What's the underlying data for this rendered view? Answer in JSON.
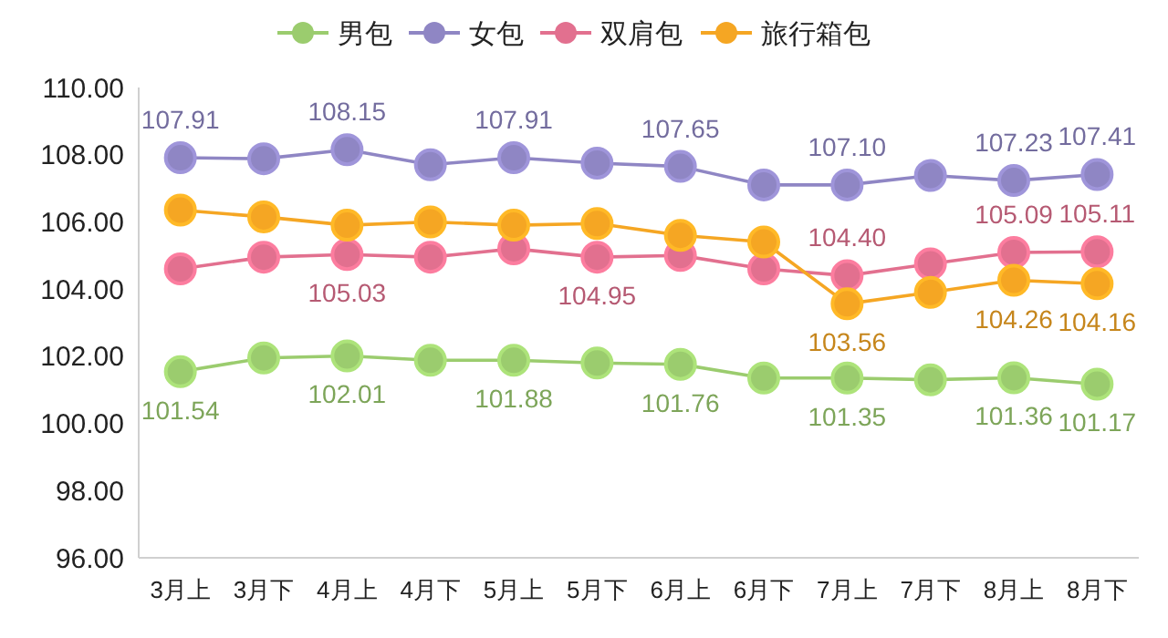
{
  "chart_data": {
    "type": "line",
    "categories": [
      "3月上",
      "3月下",
      "4月上",
      "4月下",
      "5月上",
      "5月下",
      "6月上",
      "6月下",
      "7月上",
      "7月下",
      "8月上",
      "8月下"
    ],
    "ylim": [
      96,
      110
    ],
    "yticks": [
      {
        "value": 96,
        "label": "96.00"
      },
      {
        "value": 98,
        "label": "98.00"
      },
      {
        "value": 100,
        "label": "100.00"
      },
      {
        "value": 102,
        "label": "102.00"
      },
      {
        "value": 104,
        "label": "104.00"
      },
      {
        "value": 106,
        "label": "106.00"
      },
      {
        "value": 108,
        "label": "108.00"
      },
      {
        "value": 110,
        "label": "110.00"
      }
    ],
    "grid": false,
    "legend": "top",
    "marker": "circle",
    "line_style": "solid",
    "series": [
      {
        "name": "男包",
        "color": "#9bcc6e",
        "values": [
          101.54,
          101.95,
          102.01,
          101.88,
          101.88,
          101.8,
          101.76,
          101.35,
          101.35,
          101.3,
          101.36,
          101.17
        ],
        "value_labels": [
          "101.54",
          null,
          "102.01",
          null,
          "101.88",
          null,
          "101.76",
          null,
          "101.35",
          null,
          "101.36",
          "101.17"
        ]
      },
      {
        "name": "女包",
        "color": "#8f86c4",
        "values": [
          107.91,
          107.88,
          108.15,
          107.7,
          107.91,
          107.75,
          107.65,
          107.1,
          107.1,
          107.38,
          107.23,
          107.41
        ],
        "value_labels": [
          "107.91",
          null,
          "108.15",
          null,
          "107.91",
          null,
          "107.65",
          null,
          "107.10",
          null,
          "107.23",
          "107.41"
        ]
      },
      {
        "name": "双肩包",
        "color": "#e2708f",
        "values": [
          104.6,
          104.95,
          105.03,
          104.95,
          105.2,
          104.95,
          105.0,
          104.6,
          104.4,
          104.75,
          105.09,
          105.11
        ],
        "value_labels": [
          null,
          null,
          "105.03",
          null,
          null,
          "104.95",
          null,
          null,
          "104.40",
          null,
          "105.09",
          "105.11"
        ]
      },
      {
        "name": "旅行箱包",
        "color": "#f5a623",
        "values": [
          106.35,
          106.15,
          105.9,
          106.0,
          105.9,
          105.95,
          105.6,
          105.4,
          103.56,
          103.9,
          104.26,
          104.16
        ],
        "value_labels": [
          null,
          null,
          null,
          null,
          null,
          null,
          null,
          null,
          "103.56",
          null,
          "104.26",
          "104.16"
        ]
      }
    ]
  }
}
